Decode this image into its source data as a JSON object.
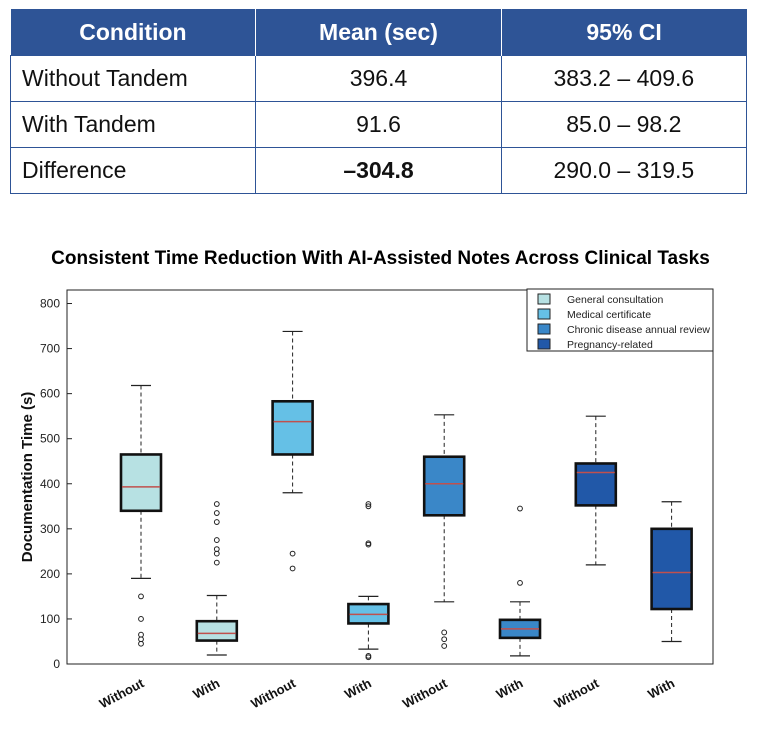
{
  "table": {
    "headers": [
      "Condition",
      "Mean (sec)",
      "95% CI"
    ],
    "rows": [
      {
        "condition": "Without Tandem",
        "mean": "396.4",
        "ci": "383.2 – 409.6",
        "bold_mean": false
      },
      {
        "condition": "With Tandem",
        "mean": "91.6",
        "ci": "85.0 – 98.2",
        "bold_mean": false
      },
      {
        "condition": "Difference",
        "mean": "–304.8",
        "ci": "290.0 – 319.5",
        "bold_mean": true
      }
    ],
    "header_color": "#2e5496"
  },
  "chart_data": {
    "type": "boxplot",
    "title": "Consistent Time Reduction With AI-Assisted Notes Across Clinical Tasks",
    "ylabel": "Documentation Time (s)",
    "xlabel": "",
    "ylim": [
      0,
      830
    ],
    "yticks": [
      0,
      100,
      200,
      300,
      400,
      500,
      600,
      700,
      800
    ],
    "grid": false,
    "legend_position": "top-right",
    "legend": [
      {
        "name": "General consultation",
        "color": "#b7e1e3"
      },
      {
        "name": "Medical certificate",
        "color": "#65c0e6"
      },
      {
        "name": "Chronic disease annual review",
        "color": "#3a87c8"
      },
      {
        "name": "Pregnancy-related",
        "color": "#2158a8"
      }
    ],
    "median_color": "#c0504d",
    "boxes": [
      {
        "label": "Without",
        "group": "General consultation",
        "whisker_low": 190,
        "q1": 340,
        "median": 393,
        "q3": 465,
        "whisker_high": 618,
        "outliers": [
          150,
          100,
          65,
          55,
          45
        ],
        "color": "#b7e1e3"
      },
      {
        "label": "With",
        "group": "General consultation",
        "whisker_low": 20,
        "q1": 52,
        "median": 68,
        "q3": 95,
        "whisker_high": 152,
        "outliers": [
          225,
          245,
          255,
          275,
          315,
          335,
          355
        ],
        "color": "#b7e1e3"
      },
      {
        "label": "Without",
        "group": "Medical certificate",
        "whisker_low": 380,
        "q1": 465,
        "median": 538,
        "q3": 583,
        "whisker_high": 738,
        "outliers": [
          245,
          212
        ],
        "color": "#65c0e6"
      },
      {
        "label": "With",
        "group": "Medical certificate",
        "whisker_low": 33,
        "q1": 90,
        "median": 110,
        "q3": 133,
        "whisker_high": 150,
        "outliers": [
          265,
          268,
          350,
          355,
          18,
          15
        ],
        "color": "#65c0e6"
      },
      {
        "label": "Without",
        "group": "Chronic disease annual review",
        "whisker_low": 138,
        "q1": 330,
        "median": 400,
        "q3": 460,
        "whisker_high": 553,
        "outliers": [
          70,
          55,
          40
        ],
        "color": "#3a87c8"
      },
      {
        "label": "With",
        "group": "Chronic disease annual review",
        "whisker_low": 18,
        "q1": 58,
        "median": 78,
        "q3": 98,
        "whisker_high": 138,
        "outliers": [
          345,
          180
        ],
        "color": "#3a87c8"
      },
      {
        "label": "Without",
        "group": "Pregnancy-related",
        "whisker_low": 220,
        "q1": 352,
        "median": 425,
        "q3": 445,
        "whisker_high": 550,
        "outliers": [],
        "color": "#2158a8"
      },
      {
        "label": "With",
        "group": "Pregnancy-related",
        "whisker_low": 50,
        "q1": 122,
        "median": 203,
        "q3": 300,
        "whisker_high": 360,
        "outliers": [],
        "color": "#2158a8"
      }
    ]
  }
}
